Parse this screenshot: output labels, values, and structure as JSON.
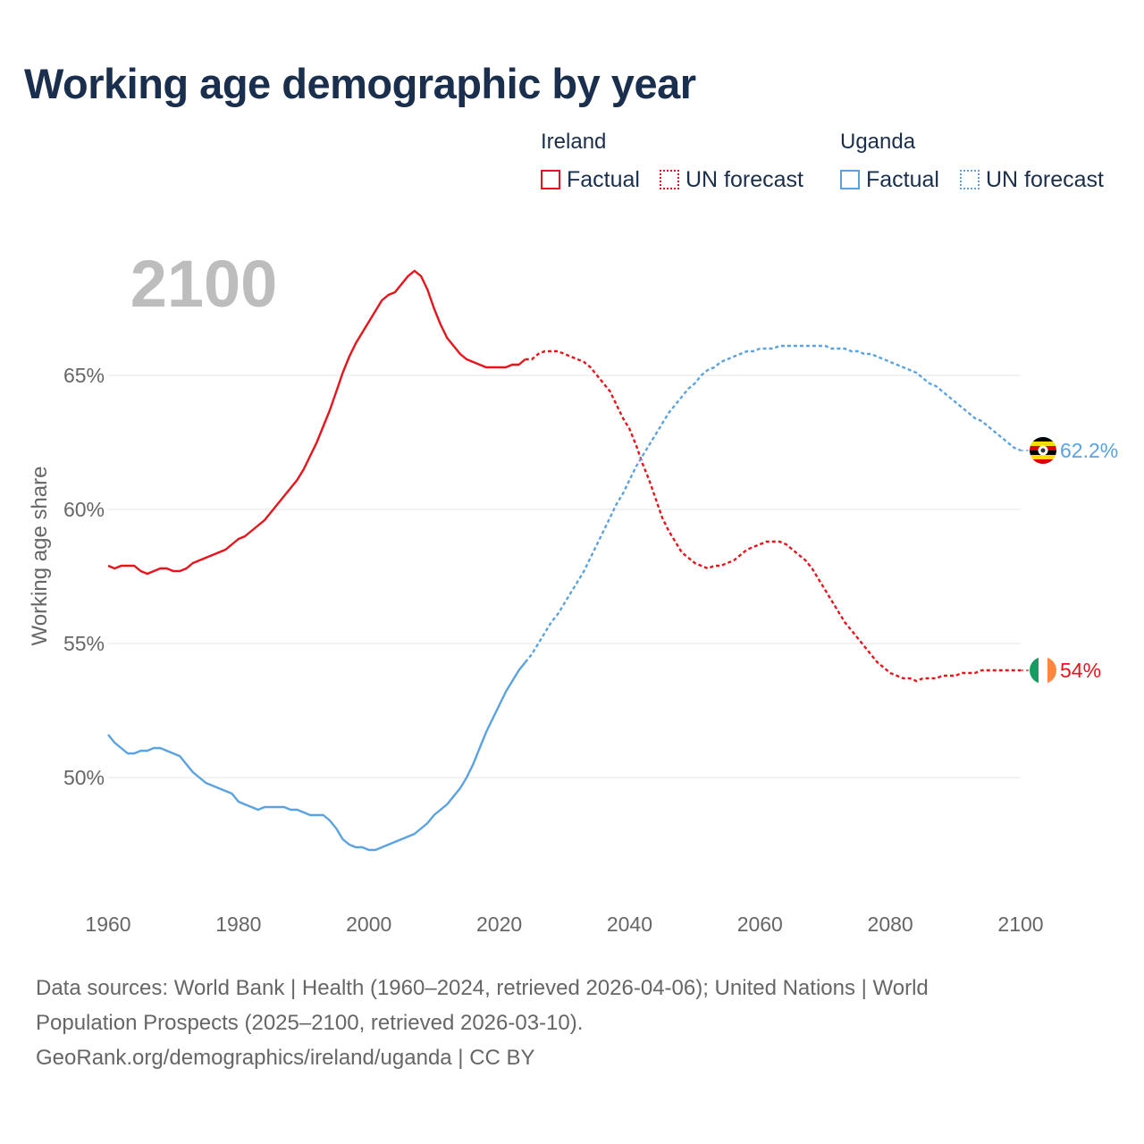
{
  "title": "Working age demographic by year",
  "legend": {
    "groups": [
      {
        "name": "Ireland",
        "color": "#e8141b",
        "factual_label": "Factual",
        "forecast_label": "UN forecast"
      },
      {
        "name": "Uganda",
        "color": "#5ba3e0",
        "factual_label": "Factual",
        "forecast_label": "UN forecast"
      }
    ]
  },
  "colors": {
    "ireland": "#e8141b",
    "uganda": "#5ba3e0",
    "grid": "#e6e6e6",
    "axis_text": "#666666",
    "title": "#1a2e4d",
    "year_watermark": "#bdbdbd"
  },
  "footer": {
    "line1": "Data sources: World Bank | Health (1960–2024, retrieved 2026-04-06); United Nations | World",
    "line2": "Population Prospects (2025–2100, retrieved 2026-03-10).",
    "line3": "GeoRank.org/demographics/ireland/uganda | CC BY"
  },
  "chart_data": {
    "type": "line",
    "title": "Working age demographic by year",
    "current_year_label": "2100",
    "xlabel": "",
    "ylabel": "Working age share",
    "xlim": [
      1960,
      2100
    ],
    "ylim": [
      45.5,
      70
    ],
    "x_ticks": [
      1960,
      1980,
      2000,
      2020,
      2040,
      2060,
      2080,
      2100
    ],
    "y_ticks": [
      {
        "value": 50,
        "label": "50%"
      },
      {
        "value": 55,
        "label": "55%"
      },
      {
        "value": 60,
        "label": "60%"
      },
      {
        "value": 65,
        "label": "65%"
      }
    ],
    "grid": true,
    "factual_until": 2024,
    "series": [
      {
        "name": "Ireland",
        "end_label": "54%",
        "flag": "ireland-flag",
        "points": [
          [
            1960,
            57.9
          ],
          [
            1961,
            57.8
          ],
          [
            1962,
            57.9
          ],
          [
            1963,
            57.9
          ],
          [
            1964,
            57.9
          ],
          [
            1965,
            57.7
          ],
          [
            1966,
            57.6
          ],
          [
            1967,
            57.7
          ],
          [
            1968,
            57.8
          ],
          [
            1969,
            57.8
          ],
          [
            1970,
            57.7
          ],
          [
            1971,
            57.7
          ],
          [
            1972,
            57.8
          ],
          [
            1973,
            58.0
          ],
          [
            1974,
            58.1
          ],
          [
            1975,
            58.2
          ],
          [
            1976,
            58.3
          ],
          [
            1977,
            58.4
          ],
          [
            1978,
            58.5
          ],
          [
            1979,
            58.7
          ],
          [
            1980,
            58.9
          ],
          [
            1981,
            59.0
          ],
          [
            1982,
            59.2
          ],
          [
            1983,
            59.4
          ],
          [
            1984,
            59.6
          ],
          [
            1985,
            59.9
          ],
          [
            1986,
            60.2
          ],
          [
            1987,
            60.5
          ],
          [
            1988,
            60.8
          ],
          [
            1989,
            61.1
          ],
          [
            1990,
            61.5
          ],
          [
            1991,
            62.0
          ],
          [
            1992,
            62.5
          ],
          [
            1993,
            63.1
          ],
          [
            1994,
            63.7
          ],
          [
            1995,
            64.4
          ],
          [
            1996,
            65.1
          ],
          [
            1997,
            65.7
          ],
          [
            1998,
            66.2
          ],
          [
            1999,
            66.6
          ],
          [
            2000,
            67.0
          ],
          [
            2001,
            67.4
          ],
          [
            2002,
            67.8
          ],
          [
            2003,
            68.0
          ],
          [
            2004,
            68.1
          ],
          [
            2005,
            68.4
          ],
          [
            2006,
            68.7
          ],
          [
            2007,
            68.9
          ],
          [
            2008,
            68.7
          ],
          [
            2009,
            68.2
          ],
          [
            2010,
            67.5
          ],
          [
            2011,
            66.9
          ],
          [
            2012,
            66.4
          ],
          [
            2013,
            66.1
          ],
          [
            2014,
            65.8
          ],
          [
            2015,
            65.6
          ],
          [
            2016,
            65.5
          ],
          [
            2017,
            65.4
          ],
          [
            2018,
            65.3
          ],
          [
            2019,
            65.3
          ],
          [
            2020,
            65.3
          ],
          [
            2021,
            65.3
          ],
          [
            2022,
            65.4
          ],
          [
            2023,
            65.4
          ],
          [
            2024,
            65.6
          ],
          [
            2025,
            65.6
          ],
          [
            2026,
            65.8
          ],
          [
            2027,
            65.9
          ],
          [
            2028,
            65.9
          ],
          [
            2029,
            65.9
          ],
          [
            2030,
            65.8
          ],
          [
            2031,
            65.7
          ],
          [
            2032,
            65.6
          ],
          [
            2033,
            65.5
          ],
          [
            2034,
            65.3
          ],
          [
            2035,
            65.0
          ],
          [
            2036,
            64.7
          ],
          [
            2037,
            64.4
          ],
          [
            2038,
            63.9
          ],
          [
            2039,
            63.4
          ],
          [
            2040,
            63.0
          ],
          [
            2041,
            62.4
          ],
          [
            2042,
            61.7
          ],
          [
            2043,
            61.1
          ],
          [
            2044,
            60.4
          ],
          [
            2045,
            59.7
          ],
          [
            2046,
            59.2
          ],
          [
            2047,
            58.8
          ],
          [
            2048,
            58.4
          ],
          [
            2049,
            58.2
          ],
          [
            2050,
            58.0
          ],
          [
            2051,
            57.9
          ],
          [
            2052,
            57.8
          ],
          [
            2053,
            57.9
          ],
          [
            2054,
            57.9
          ],
          [
            2055,
            58.0
          ],
          [
            2056,
            58.1
          ],
          [
            2057,
            58.3
          ],
          [
            2058,
            58.5
          ],
          [
            2059,
            58.6
          ],
          [
            2060,
            58.7
          ],
          [
            2061,
            58.8
          ],
          [
            2062,
            58.8
          ],
          [
            2063,
            58.8
          ],
          [
            2064,
            58.7
          ],
          [
            2065,
            58.5
          ],
          [
            2066,
            58.3
          ],
          [
            2067,
            58.1
          ],
          [
            2068,
            57.8
          ],
          [
            2069,
            57.4
          ],
          [
            2070,
            57.0
          ],
          [
            2071,
            56.6
          ],
          [
            2072,
            56.2
          ],
          [
            2073,
            55.8
          ],
          [
            2074,
            55.5
          ],
          [
            2075,
            55.2
          ],
          [
            2076,
            54.9
          ],
          [
            2077,
            54.6
          ],
          [
            2078,
            54.3
          ],
          [
            2079,
            54.1
          ],
          [
            2080,
            53.9
          ],
          [
            2081,
            53.8
          ],
          [
            2082,
            53.7
          ],
          [
            2083,
            53.7
          ],
          [
            2084,
            53.6
          ],
          [
            2085,
            53.7
          ],
          [
            2086,
            53.7
          ],
          [
            2087,
            53.7
          ],
          [
            2088,
            53.8
          ],
          [
            2089,
            53.8
          ],
          [
            2090,
            53.8
          ],
          [
            2091,
            53.9
          ],
          [
            2092,
            53.9
          ],
          [
            2093,
            53.9
          ],
          [
            2094,
            54.0
          ],
          [
            2095,
            54.0
          ],
          [
            2096,
            54.0
          ],
          [
            2097,
            54.0
          ],
          [
            2098,
            54.0
          ],
          [
            2099,
            54.0
          ],
          [
            2100,
            54.0
          ]
        ]
      },
      {
        "name": "Uganda",
        "end_label": "62.2%",
        "flag": "uganda-flag",
        "points": [
          [
            1960,
            51.6
          ],
          [
            1961,
            51.3
          ],
          [
            1962,
            51.1
          ],
          [
            1963,
            50.9
          ],
          [
            1964,
            50.9
          ],
          [
            1965,
            51.0
          ],
          [
            1966,
            51.0
          ],
          [
            1967,
            51.1
          ],
          [
            1968,
            51.1
          ],
          [
            1969,
            51.0
          ],
          [
            1970,
            50.9
          ],
          [
            1971,
            50.8
          ],
          [
            1972,
            50.5
          ],
          [
            1973,
            50.2
          ],
          [
            1974,
            50.0
          ],
          [
            1975,
            49.8
          ],
          [
            1976,
            49.7
          ],
          [
            1977,
            49.6
          ],
          [
            1978,
            49.5
          ],
          [
            1979,
            49.4
          ],
          [
            1980,
            49.1
          ],
          [
            1981,
            49.0
          ],
          [
            1982,
            48.9
          ],
          [
            1983,
            48.8
          ],
          [
            1984,
            48.9
          ],
          [
            1985,
            48.9
          ],
          [
            1986,
            48.9
          ],
          [
            1987,
            48.9
          ],
          [
            1988,
            48.8
          ],
          [
            1989,
            48.8
          ],
          [
            1990,
            48.7
          ],
          [
            1991,
            48.6
          ],
          [
            1992,
            48.6
          ],
          [
            1993,
            48.6
          ],
          [
            1994,
            48.4
          ],
          [
            1995,
            48.1
          ],
          [
            1996,
            47.7
          ],
          [
            1997,
            47.5
          ],
          [
            1998,
            47.4
          ],
          [
            1999,
            47.4
          ],
          [
            2000,
            47.3
          ],
          [
            2001,
            47.3
          ],
          [
            2002,
            47.4
          ],
          [
            2003,
            47.5
          ],
          [
            2004,
            47.6
          ],
          [
            2005,
            47.7
          ],
          [
            2006,
            47.8
          ],
          [
            2007,
            47.9
          ],
          [
            2008,
            48.1
          ],
          [
            2009,
            48.3
          ],
          [
            2010,
            48.6
          ],
          [
            2011,
            48.8
          ],
          [
            2012,
            49.0
          ],
          [
            2013,
            49.3
          ],
          [
            2014,
            49.6
          ],
          [
            2015,
            50.0
          ],
          [
            2016,
            50.5
          ],
          [
            2017,
            51.1
          ],
          [
            2018,
            51.7
          ],
          [
            2019,
            52.2
          ],
          [
            2020,
            52.7
          ],
          [
            2021,
            53.2
          ],
          [
            2022,
            53.6
          ],
          [
            2023,
            54.0
          ],
          [
            2024,
            54.3
          ],
          [
            2025,
            54.6
          ],
          [
            2026,
            55.0
          ],
          [
            2027,
            55.4
          ],
          [
            2028,
            55.8
          ],
          [
            2029,
            56.1
          ],
          [
            2030,
            56.5
          ],
          [
            2031,
            56.9
          ],
          [
            2032,
            57.3
          ],
          [
            2033,
            57.7
          ],
          [
            2034,
            58.2
          ],
          [
            2035,
            58.7
          ],
          [
            2036,
            59.2
          ],
          [
            2037,
            59.7
          ],
          [
            2038,
            60.2
          ],
          [
            2039,
            60.6
          ],
          [
            2040,
            61.1
          ],
          [
            2041,
            61.6
          ],
          [
            2042,
            62.0
          ],
          [
            2043,
            62.4
          ],
          [
            2044,
            62.8
          ],
          [
            2045,
            63.2
          ],
          [
            2046,
            63.6
          ],
          [
            2047,
            63.9
          ],
          [
            2048,
            64.2
          ],
          [
            2049,
            64.5
          ],
          [
            2050,
            64.7
          ],
          [
            2051,
            65.0
          ],
          [
            2052,
            65.2
          ],
          [
            2053,
            65.3
          ],
          [
            2054,
            65.5
          ],
          [
            2055,
            65.6
          ],
          [
            2056,
            65.7
          ],
          [
            2057,
            65.8
          ],
          [
            2058,
            65.9
          ],
          [
            2059,
            65.9
          ],
          [
            2060,
            66.0
          ],
          [
            2061,
            66.0
          ],
          [
            2062,
            66.0
          ],
          [
            2063,
            66.1
          ],
          [
            2064,
            66.1
          ],
          [
            2065,
            66.1
          ],
          [
            2066,
            66.1
          ],
          [
            2067,
            66.1
          ],
          [
            2068,
            66.1
          ],
          [
            2069,
            66.1
          ],
          [
            2070,
            66.1
          ],
          [
            2071,
            66.0
          ],
          [
            2072,
            66.0
          ],
          [
            2073,
            66.0
          ],
          [
            2074,
            65.9
          ],
          [
            2075,
            65.9
          ],
          [
            2076,
            65.8
          ],
          [
            2077,
            65.8
          ],
          [
            2078,
            65.7
          ],
          [
            2079,
            65.6
          ],
          [
            2080,
            65.5
          ],
          [
            2081,
            65.4
          ],
          [
            2082,
            65.3
          ],
          [
            2083,
            65.2
          ],
          [
            2084,
            65.1
          ],
          [
            2085,
            64.9
          ],
          [
            2086,
            64.7
          ],
          [
            2087,
            64.6
          ],
          [
            2088,
            64.4
          ],
          [
            2089,
            64.2
          ],
          [
            2090,
            64.0
          ],
          [
            2091,
            63.8
          ],
          [
            2092,
            63.6
          ],
          [
            2093,
            63.4
          ],
          [
            2094,
            63.3
          ],
          [
            2095,
            63.1
          ],
          [
            2096,
            62.9
          ],
          [
            2097,
            62.7
          ],
          [
            2098,
            62.5
          ],
          [
            2099,
            62.3
          ],
          [
            2100,
            62.2
          ]
        ]
      }
    ]
  }
}
